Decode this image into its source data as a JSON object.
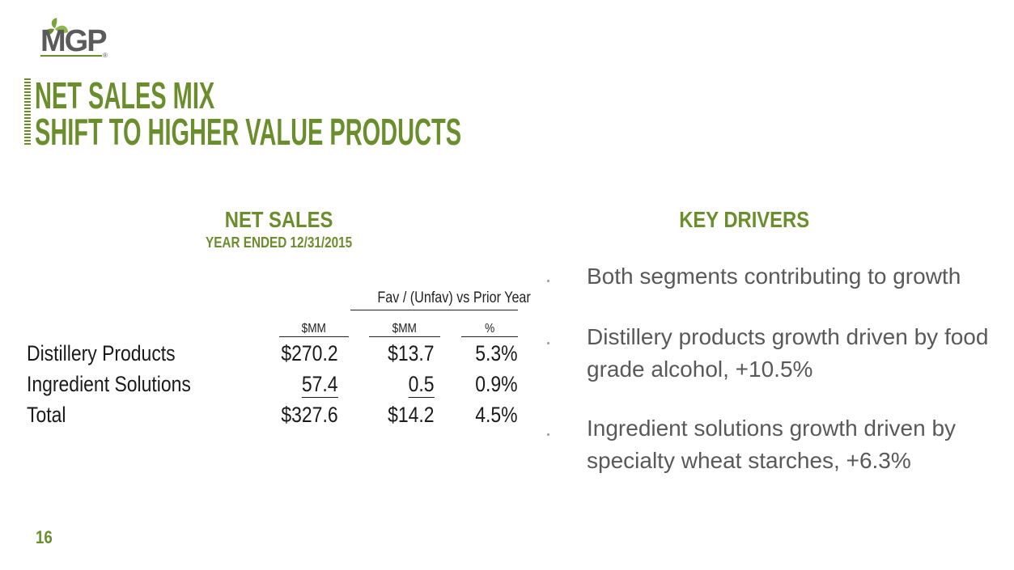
{
  "logo": {
    "text": "MGP",
    "mark": "®"
  },
  "title": {
    "line1": "NET SALES MIX",
    "line2": "SHIFT TO HIGHER VALUE PRODUCTS"
  },
  "net_sales": {
    "heading": "NET SALES",
    "subheading": "YEAR ENDED 12/31/2015",
    "table": {
      "group_header": "Fav / (Unfav) vs Prior Year",
      "columns": [
        "$MM",
        "$MM",
        "%"
      ],
      "rows": [
        [
          "Distillery Products",
          "$270.2",
          "$13.7",
          "5.3%"
        ],
        [
          "Ingredient Solutions",
          "57.4",
          "0.5",
          "0.9%"
        ],
        [
          "Total",
          "$327.6",
          "$14.2",
          "4.5%"
        ]
      ]
    }
  },
  "key_drivers": {
    "heading": "KEY DRIVERS",
    "bullets": [
      "Both segments contributing to growth",
      "Distillery products growth driven by food grade alcohol, +10.5%",
      "Ingredient solutions growth driven by specialty wheat starches, +6.3%"
    ]
  },
  "page_number": "16"
}
